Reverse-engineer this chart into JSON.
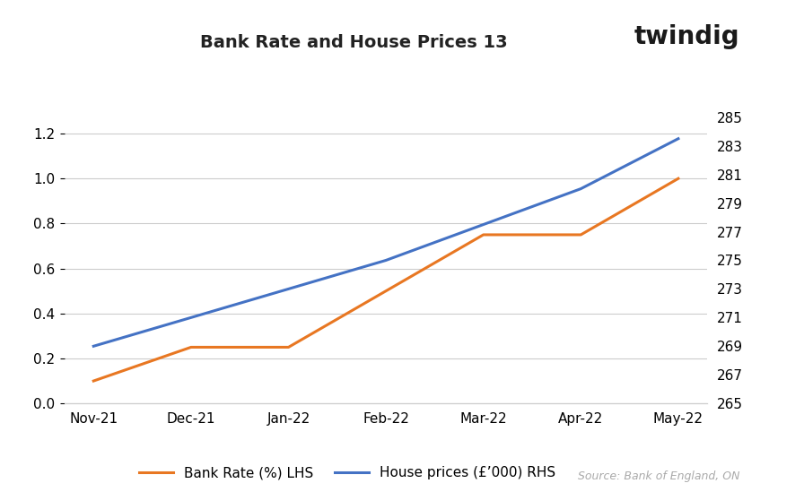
{
  "title": "Bank Rate and House Prices 13",
  "x_labels": [
    "Nov-21",
    "Dec-21",
    "Jan-22",
    "Feb-22",
    "Mar-22",
    "Apr-22",
    "May-22"
  ],
  "bank_rate": [
    0.1,
    0.25,
    0.25,
    0.5,
    0.75,
    0.75,
    1.0
  ],
  "house_prices": [
    269,
    271,
    273,
    275,
    277.5,
    280,
    283.5
  ],
  "bank_rate_color": "#E87722",
  "house_price_color": "#4472C4",
  "lhs_ylim": [
    0.0,
    1.4
  ],
  "rhs_ylim": [
    265,
    287
  ],
  "lhs_yticks": [
    0.0,
    0.2,
    0.4,
    0.6,
    0.8,
    1.0,
    1.2
  ],
  "rhs_yticks": [
    265,
    267,
    269,
    271,
    273,
    275,
    277,
    279,
    281,
    283,
    285
  ],
  "legend_label_lhs": "Bank Rate (%) LHS",
  "legend_label_rhs": "House prices (£’000) RHS",
  "source_text": "Source: Bank of England, ON",
  "twindig_text": "twindig",
  "background_color": "#ffffff",
  "grid_color": "#cccccc",
  "line_width": 2.2,
  "title_fontsize": 14,
  "tick_fontsize": 11,
  "legend_fontsize": 11
}
